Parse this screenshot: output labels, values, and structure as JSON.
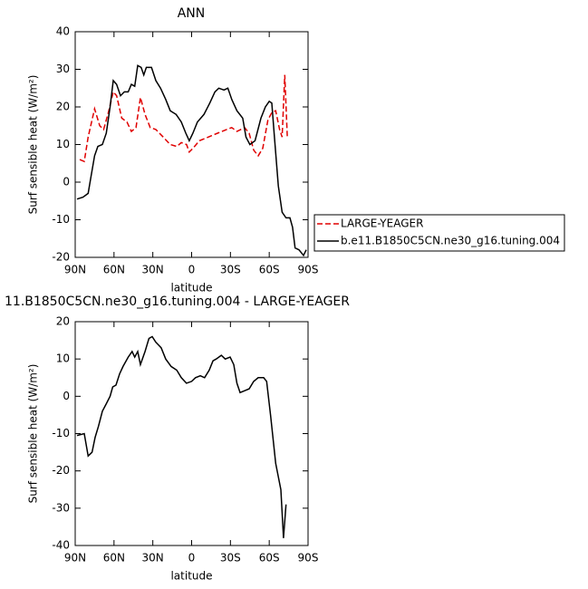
{
  "chart_data": [
    {
      "type": "line",
      "title": "ANN",
      "xlabel": "latitude",
      "ylabel": "Surf sensible heat (W/m²)",
      "xlim": [
        90,
        -90
      ],
      "xticks": [
        {
          "value": 90,
          "label": "90N"
        },
        {
          "value": 60,
          "label": "60N"
        },
        {
          "value": 30,
          "label": "30N"
        },
        0,
        {
          "value": -30,
          "label": "30S"
        },
        {
          "value": -60,
          "label": "60S"
        },
        {
          "value": -90,
          "label": "90S"
        }
      ],
      "ylim": [
        -20,
        40
      ],
      "yticks": [
        -20,
        -10,
        0,
        10,
        20,
        30,
        40
      ],
      "series": [
        {
          "name": "LARGE-YEAGER",
          "color": "#e00000",
          "style": "dashed",
          "x": [
            86.5,
            83,
            80,
            75,
            71,
            68,
            64,
            60.6,
            58,
            54,
            50,
            46.6,
            43,
            39.6,
            36,
            32,
            27.7,
            22,
            16.5,
            11.5,
            8,
            3.9,
            1.8,
            -1,
            -6,
            -13,
            -20,
            -27,
            -31,
            -35,
            -41,
            -44.5,
            -48,
            -51.5,
            -55,
            -59,
            -62,
            -65,
            -68,
            -70,
            -72,
            -74
          ],
          "values": [
            6,
            5.5,
            12,
            19.5,
            15,
            14,
            19,
            24,
            23,
            17,
            16,
            13.5,
            14.5,
            22.5,
            18,
            14.5,
            14,
            12,
            10,
            9.5,
            10.5,
            10,
            8,
            9,
            11,
            12,
            13,
            14,
            14.5,
            13.5,
            14.5,
            13,
            8.5,
            7,
            9,
            16.5,
            18.5,
            19,
            14,
            12,
            28.5,
            11.5
          ]
        },
        {
          "name": "b.e11.B1850C5CN.ne30_g16.tuning.004",
          "color": "#000000",
          "style": "solid",
          "x": [
            88.6,
            84,
            80,
            78,
            75,
            72.5,
            69,
            66,
            63,
            60.6,
            58,
            55,
            52,
            49,
            46.6,
            44,
            41.7,
            39,
            37,
            35,
            31,
            27.7,
            24,
            20,
            16.5,
            12,
            8,
            4.5,
            1.8,
            -1,
            -4.5,
            -9.5,
            -14,
            -18,
            -21,
            -25,
            -28,
            -31,
            -35,
            -39.5,
            -42,
            -45,
            -49,
            -53.6,
            -57,
            -60,
            -62,
            -64,
            -67,
            -70,
            -73,
            -76,
            -78,
            -80,
            -83,
            -86.5,
            -88.6
          ],
          "values": [
            -4.5,
            -4,
            -3,
            1,
            7,
            9.5,
            10,
            13,
            20,
            27,
            26,
            23,
            24,
            24,
            26,
            25.5,
            31,
            30.5,
            28.5,
            30.5,
            30.5,
            27,
            25,
            22,
            19,
            18,
            16,
            13,
            11,
            13,
            16,
            18,
            21,
            24,
            25,
            24.5,
            25,
            22,
            19,
            17,
            12,
            10,
            11,
            17,
            20,
            21.5,
            21,
            12,
            -1,
            -8,
            -9.5,
            -9.5,
            -12,
            -17.5,
            -18,
            -19.5,
            -18
          ]
        }
      ]
    },
    {
      "type": "line",
      "title": "11.B1850C5CN.ne30_g16.tuning.004 - LARGE-YEAGER",
      "xlabel": "latitude",
      "ylabel": "Surf sensible heat (W/m²)",
      "xlim": [
        90,
        -90
      ],
      "xticks": [
        {
          "value": 90,
          "label": "90N"
        },
        {
          "value": 60,
          "label": "60N"
        },
        {
          "value": 30,
          "label": "30N"
        },
        0,
        {
          "value": -30,
          "label": "30S"
        },
        {
          "value": -60,
          "label": "60S"
        },
        {
          "value": -90,
          "label": "90S"
        }
      ],
      "ylim": [
        -40,
        20
      ],
      "yticks": [
        -40,
        -30,
        -20,
        -10,
        0,
        10,
        20
      ],
      "series": [
        {
          "color": "#000000",
          "style": "solid",
          "x": [
            88.6,
            83,
            80,
            77,
            74.6,
            72,
            69,
            66,
            63,
            61,
            58.5,
            55.7,
            53,
            49,
            46,
            44,
            41.7,
            39.6,
            36,
            33,
            30.5,
            27.7,
            23.5,
            20,
            15.8,
            11.5,
            8,
            4,
            0,
            -3,
            -6.7,
            -10,
            -13.6,
            -16.5,
            -19,
            -23,
            -26,
            -29.8,
            -32.6,
            -35,
            -37.5,
            -41,
            -44.5,
            -48,
            -51.5,
            -55.7,
            -58,
            -61,
            -65,
            -69,
            -71,
            -73
          ],
          "values": [
            -10.5,
            -10,
            -16,
            -15,
            -11,
            -8,
            -4,
            -2,
            0,
            2.5,
            3,
            6,
            8,
            10.5,
            12,
            10.5,
            12,
            8.5,
            12,
            15.5,
            16,
            14.5,
            13,
            10,
            8,
            7,
            5,
            3.5,
            4,
            5,
            5.5,
            5,
            7,
            9.5,
            10,
            11,
            10,
            10.5,
            8.5,
            3.5,
            1,
            1.5,
            2,
            4,
            5,
            5,
            4,
            -5,
            -18,
            -25,
            -38,
            -29
          ]
        }
      ]
    }
  ]
}
